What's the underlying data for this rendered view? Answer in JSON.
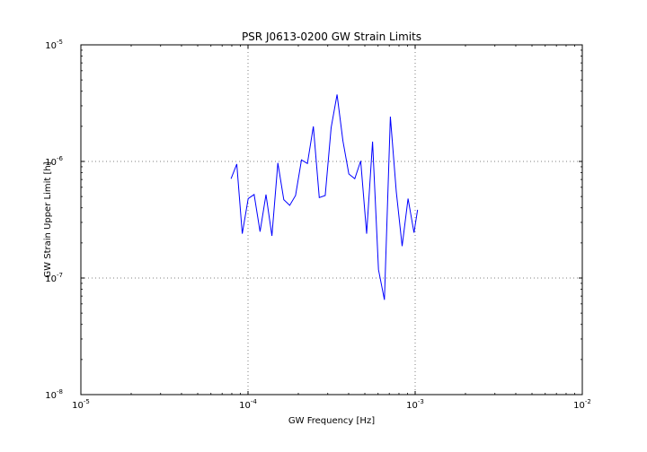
{
  "chart_data": {
    "type": "line",
    "title": "PSR J0613-0200 GW Strain Limits",
    "xlabel": "GW Frequency [Hz]",
    "ylabel": "GW Strain Upper Limit [h]",
    "xscale": "log",
    "yscale": "log",
    "xlim": [
      1e-05,
      0.01
    ],
    "ylim": [
      1e-08,
      1e-05
    ],
    "grid": true,
    "x_ticks": [
      {
        "value": 1e-05,
        "base": "10",
        "exp": "-5"
      },
      {
        "value": 0.0001,
        "base": "10",
        "exp": "-4"
      },
      {
        "value": 0.001,
        "base": "10",
        "exp": "-3"
      },
      {
        "value": 0.01,
        "base": "10",
        "exp": "-2"
      }
    ],
    "y_ticks": [
      {
        "value": 1e-08,
        "base": "10",
        "exp": "-8"
      },
      {
        "value": 1e-07,
        "base": "10",
        "exp": "-7"
      },
      {
        "value": 1e-06,
        "base": "10",
        "exp": "-6"
      },
      {
        "value": 1e-05,
        "base": "10",
        "exp": "-5"
      }
    ],
    "line_color": "#0000ff",
    "series": [
      {
        "x": [
          7.91e-05,
          8.57e-05,
          9.24e-05,
          0.0001003,
          0.0001088,
          0.0001181,
          0.0001281,
          0.000139,
          0.0001508,
          0.0001636,
          0.0001775,
          0.0001926,
          0.000209,
          0.0002267,
          0.000246,
          0.0002669,
          0.0002896,
          0.0003142,
          0.0003409,
          0.0003698,
          0.0004013,
          0.0004354,
          0.0004724,
          0.0005125,
          0.0005561,
          0.0006033,
          0.0006546,
          0.0007102,
          0.0007706,
          0.000836,
          0.0009071,
          0.0009841,
          0.0010335
        ],
        "y": [
          7.1e-07,
          9.5e-07,
          2.4e-07,
          4.8e-07,
          5.2e-07,
          2.5e-07,
          5.2e-07,
          2.3e-07,
          9.7e-07,
          4.7e-07,
          4.2e-07,
          5.1e-07,
          1.03e-06,
          9.6e-07,
          2e-06,
          4.9e-07,
          5.1e-07,
          1.95e-06,
          3.75e-06,
          1.5e-06,
          7.8e-07,
          7.1e-07,
          1.01e-06,
          2.4e-07,
          1.48e-06,
          1.18e-07,
          6.5e-08,
          2.42e-06,
          5.5e-07,
          1.88e-07,
          4.8e-07,
          2.45e-07,
          3.85e-07
        ]
      }
    ]
  }
}
